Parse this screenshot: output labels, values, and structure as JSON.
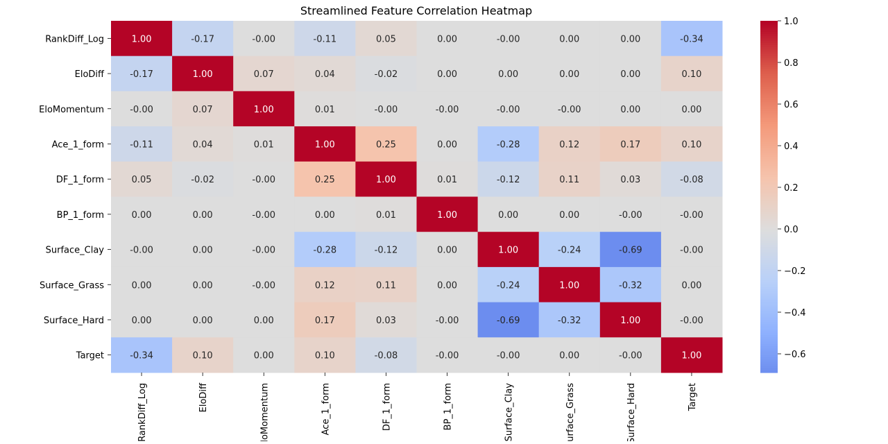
{
  "chart_data": {
    "type": "heatmap",
    "title": "Streamlined Feature Correlation Heatmap",
    "xlabel": "",
    "ylabel": "",
    "rows": [
      "RankDiff_Log",
      "EloDiff",
      "EloMomentum",
      "Ace_1_form",
      "DF_1_form",
      "BP_1_form",
      "Surface_Clay",
      "Surface_Grass",
      "Surface_Hard",
      "Target"
    ],
    "columns": [
      "RankDiff_Log",
      "EloDiff",
      "EloMomentum",
      "Ace_1_form",
      "DF_1_form",
      "BP_1_form",
      "Surface_Clay",
      "Surface_Grass",
      "Surface_Hard",
      "Target"
    ],
    "values": [
      [
        1.0,
        -0.17,
        -0.0,
        -0.11,
        0.05,
        0.0,
        -0.0,
        0.0,
        0.0,
        -0.34
      ],
      [
        -0.17,
        1.0,
        0.07,
        0.04,
        -0.02,
        0.0,
        0.0,
        0.0,
        0.0,
        0.1
      ],
      [
        -0.0,
        0.07,
        1.0,
        0.01,
        -0.0,
        -0.0,
        -0.0,
        -0.0,
        0.0,
        0.0
      ],
      [
        -0.11,
        0.04,
        0.01,
        1.0,
        0.25,
        0.0,
        -0.28,
        0.12,
        0.17,
        0.1
      ],
      [
        0.05,
        -0.02,
        -0.0,
        0.25,
        1.0,
        0.01,
        -0.12,
        0.11,
        0.03,
        -0.08
      ],
      [
        0.0,
        0.0,
        -0.0,
        0.0,
        0.01,
        1.0,
        0.0,
        0.0,
        -0.0,
        -0.0
      ],
      [
        -0.0,
        0.0,
        -0.0,
        -0.28,
        -0.12,
        0.0,
        1.0,
        -0.24,
        -0.69,
        -0.0
      ],
      [
        0.0,
        0.0,
        -0.0,
        0.12,
        0.11,
        0.0,
        -0.24,
        1.0,
        -0.32,
        0.0
      ],
      [
        0.0,
        0.0,
        0.0,
        0.17,
        0.03,
        -0.0,
        -0.69,
        -0.32,
        1.0,
        -0.0
      ],
      [
        -0.34,
        0.1,
        0.0,
        0.1,
        -0.08,
        -0.0,
        -0.0,
        0.0,
        -0.0,
        1.0
      ]
    ],
    "labels": [
      [
        "1.00",
        "-0.17",
        "-0.00",
        "-0.11",
        "0.05",
        "0.00",
        "-0.00",
        "0.00",
        "0.00",
        "-0.34"
      ],
      [
        "-0.17",
        "1.00",
        "0.07",
        "0.04",
        "-0.02",
        "0.00",
        "0.00",
        "0.00",
        "0.00",
        "0.10"
      ],
      [
        "-0.00",
        "0.07",
        "1.00",
        "0.01",
        "-0.00",
        "-0.00",
        "-0.00",
        "-0.00",
        "0.00",
        "0.00"
      ],
      [
        "-0.11",
        "0.04",
        "0.01",
        "1.00",
        "0.25",
        "0.00",
        "-0.28",
        "0.12",
        "0.17",
        "0.10"
      ],
      [
        "0.05",
        "-0.02",
        "-0.00",
        "0.25",
        "1.00",
        "0.01",
        "-0.12",
        "0.11",
        "0.03",
        "-0.08"
      ],
      [
        "0.00",
        "0.00",
        "-0.00",
        "0.00",
        "0.01",
        "1.00",
        "0.00",
        "0.00",
        "-0.00",
        "-0.00"
      ],
      [
        "-0.00",
        "0.00",
        "-0.00",
        "-0.28",
        "-0.12",
        "0.00",
        "1.00",
        "-0.24",
        "-0.69",
        "-0.00"
      ],
      [
        "0.00",
        "0.00",
        "-0.00",
        "0.12",
        "0.11",
        "0.00",
        "-0.24",
        "1.00",
        "-0.32",
        "0.00"
      ],
      [
        "0.00",
        "0.00",
        "0.00",
        "0.17",
        "0.03",
        "-0.00",
        "-0.69",
        "-0.32",
        "1.00",
        "-0.00"
      ],
      [
        "-0.34",
        "0.10",
        "0.00",
        "0.10",
        "-0.08",
        "-0.00",
        "-0.00",
        "0.00",
        "-0.00",
        "1.00"
      ]
    ],
    "colorbar": {
      "colormap": "coolwarm",
      "vmin": -0.69,
      "vmax": 1.0,
      "ticks": [
        1.0,
        0.8,
        0.6,
        0.4,
        0.2,
        0.0,
        -0.2,
        -0.4,
        -0.6
      ],
      "tick_labels": [
        "1.0",
        "0.8",
        "0.6",
        "0.4",
        "0.2",
        "0.0",
        "−0.2",
        "−0.4",
        "−0.6"
      ]
    },
    "annotations": true,
    "grid": false,
    "legend": "colorbar-right"
  }
}
